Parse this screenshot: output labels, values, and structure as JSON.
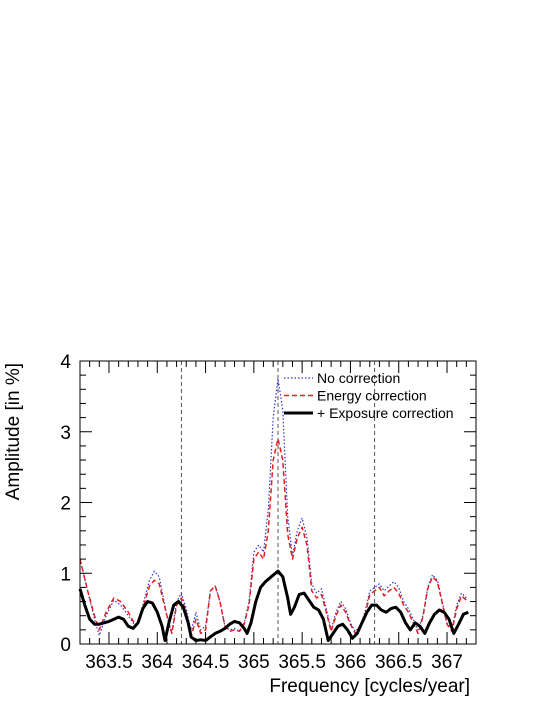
{
  "chart_data": {
    "type": "line",
    "xlabel": "Frequency [cycles/year]",
    "ylabel": "Amplitude [in %]",
    "xlim": [
      363.2,
      367.3
    ],
    "ylim": [
      0,
      4
    ],
    "x_ticks": [
      363.5,
      364,
      364.5,
      365,
      365.5,
      366,
      366.5,
      367
    ],
    "x_tick_labels": [
      "363.5",
      "364",
      "364.5",
      "365",
      "365.5",
      "366",
      "366.5",
      "367"
    ],
    "y_ticks": [
      0,
      1,
      2,
      3,
      4
    ],
    "y_tick_labels": [
      "0",
      "1",
      "2",
      "3",
      "4"
    ],
    "vertical_lines": [
      364.25,
      365.25,
      366.25
    ],
    "legend_position": "top-right",
    "grid": false,
    "series": [
      {
        "name": "No correction",
        "color": "#3333cc",
        "style": "dotted",
        "points": [
          [
            363.2,
            1.2
          ],
          [
            363.28,
            0.75
          ],
          [
            363.35,
            0.35
          ],
          [
            363.4,
            0.12
          ],
          [
            363.47,
            0.4
          ],
          [
            363.55,
            0.62
          ],
          [
            363.62,
            0.55
          ],
          [
            363.7,
            0.4
          ],
          [
            363.78,
            0.24
          ],
          [
            363.85,
            0.55
          ],
          [
            363.92,
            0.9
          ],
          [
            363.97,
            1.03
          ],
          [
            364.02,
            0.95
          ],
          [
            364.1,
            0.4
          ],
          [
            364.15,
            0.15
          ],
          [
            364.2,
            0.6
          ],
          [
            364.25,
            0.72
          ],
          [
            364.3,
            0.5
          ],
          [
            364.35,
            0.18
          ],
          [
            364.4,
            0.45
          ],
          [
            364.45,
            0.2
          ],
          [
            364.5,
            0.25
          ],
          [
            364.55,
            0.75
          ],
          [
            364.6,
            0.82
          ],
          [
            364.65,
            0.6
          ],
          [
            364.7,
            0.25
          ],
          [
            364.75,
            0.2
          ],
          [
            364.8,
            0.22
          ],
          [
            364.85,
            0.18
          ],
          [
            364.9,
            0.3
          ],
          [
            364.95,
            0.6
          ],
          [
            365.0,
            1.3
          ],
          [
            365.05,
            1.4
          ],
          [
            365.1,
            1.3
          ],
          [
            365.15,
            1.9
          ],
          [
            365.2,
            3.2
          ],
          [
            365.25,
            3.75
          ],
          [
            365.3,
            3.3
          ],
          [
            365.35,
            1.8
          ],
          [
            365.4,
            1.25
          ],
          [
            365.45,
            1.6
          ],
          [
            365.5,
            1.78
          ],
          [
            365.55,
            1.5
          ],
          [
            365.6,
            0.85
          ],
          [
            365.65,
            0.72
          ],
          [
            365.7,
            0.78
          ],
          [
            365.75,
            0.5
          ],
          [
            365.8,
            0.2
          ],
          [
            365.85,
            0.45
          ],
          [
            365.9,
            0.6
          ],
          [
            365.95,
            0.5
          ],
          [
            366.0,
            0.3
          ],
          [
            366.05,
            0.18
          ],
          [
            366.1,
            0.25
          ],
          [
            366.15,
            0.45
          ],
          [
            366.2,
            0.75
          ],
          [
            366.25,
            0.8
          ],
          [
            366.3,
            0.85
          ],
          [
            366.35,
            0.75
          ],
          [
            366.4,
            0.82
          ],
          [
            366.45,
            0.88
          ],
          [
            366.5,
            0.8
          ],
          [
            366.55,
            0.6
          ],
          [
            366.6,
            0.5
          ],
          [
            366.65,
            0.35
          ],
          [
            366.7,
            0.2
          ],
          [
            366.75,
            0.4
          ],
          [
            366.8,
            0.8
          ],
          [
            366.85,
            0.98
          ],
          [
            366.9,
            0.9
          ],
          [
            366.95,
            0.6
          ],
          [
            367.0,
            0.3
          ],
          [
            367.05,
            0.2
          ],
          [
            367.1,
            0.55
          ],
          [
            367.15,
            0.72
          ],
          [
            367.2,
            0.65
          ]
        ]
      },
      {
        "name": "Energy correction",
        "color": "#e02020",
        "style": "dashed",
        "points": [
          [
            363.2,
            1.2
          ],
          [
            363.28,
            0.75
          ],
          [
            363.35,
            0.4
          ],
          [
            363.4,
            0.2
          ],
          [
            363.47,
            0.45
          ],
          [
            363.55,
            0.65
          ],
          [
            363.62,
            0.6
          ],
          [
            363.7,
            0.45
          ],
          [
            363.78,
            0.25
          ],
          [
            363.85,
            0.5
          ],
          [
            363.92,
            0.82
          ],
          [
            363.97,
            0.9
          ],
          [
            364.02,
            0.85
          ],
          [
            364.1,
            0.4
          ],
          [
            364.15,
            0.15
          ],
          [
            364.2,
            0.55
          ],
          [
            364.25,
            0.65
          ],
          [
            364.3,
            0.45
          ],
          [
            364.35,
            0.1
          ],
          [
            364.4,
            0.35
          ],
          [
            364.45,
            0.15
          ],
          [
            364.5,
            0.2
          ],
          [
            364.55,
            0.75
          ],
          [
            364.6,
            0.82
          ],
          [
            364.65,
            0.6
          ],
          [
            364.7,
            0.25
          ],
          [
            364.75,
            0.18
          ],
          [
            364.8,
            0.2
          ],
          [
            364.85,
            0.18
          ],
          [
            364.9,
            0.28
          ],
          [
            364.95,
            0.55
          ],
          [
            365.0,
            1.2
          ],
          [
            365.05,
            1.3
          ],
          [
            365.1,
            1.2
          ],
          [
            365.15,
            1.6
          ],
          [
            365.2,
            2.6
          ],
          [
            365.25,
            2.9
          ],
          [
            365.3,
            2.6
          ],
          [
            365.35,
            1.55
          ],
          [
            365.4,
            1.2
          ],
          [
            365.45,
            1.5
          ],
          [
            365.5,
            1.65
          ],
          [
            365.55,
            1.4
          ],
          [
            365.6,
            0.75
          ],
          [
            365.65,
            0.65
          ],
          [
            365.7,
            0.7
          ],
          [
            365.75,
            0.45
          ],
          [
            365.8,
            0.18
          ],
          [
            365.85,
            0.4
          ],
          [
            365.9,
            0.55
          ],
          [
            365.95,
            0.45
          ],
          [
            366.0,
            0.28
          ],
          [
            366.05,
            0.15
          ],
          [
            366.1,
            0.22
          ],
          [
            366.15,
            0.4
          ],
          [
            366.2,
            0.7
          ],
          [
            366.25,
            0.75
          ],
          [
            366.3,
            0.8
          ],
          [
            366.35,
            0.68
          ],
          [
            366.4,
            0.75
          ],
          [
            366.45,
            0.8
          ],
          [
            366.5,
            0.72
          ],
          [
            366.55,
            0.55
          ],
          [
            366.6,
            0.45
          ],
          [
            366.65,
            0.3
          ],
          [
            366.7,
            0.15
          ],
          [
            366.75,
            0.38
          ],
          [
            366.8,
            0.78
          ],
          [
            366.85,
            0.95
          ],
          [
            366.9,
            0.88
          ],
          [
            366.95,
            0.58
          ],
          [
            367.0,
            0.28
          ],
          [
            367.05,
            0.18
          ],
          [
            367.1,
            0.5
          ],
          [
            367.15,
            0.68
          ],
          [
            367.2,
            0.62
          ]
        ]
      },
      {
        "name": "+ Exposure correction",
        "color": "#000000",
        "style": "solid",
        "points": [
          [
            363.2,
            0.78
          ],
          [
            363.25,
            0.55
          ],
          [
            363.3,
            0.35
          ],
          [
            363.35,
            0.28
          ],
          [
            363.4,
            0.28
          ],
          [
            363.45,
            0.3
          ],
          [
            363.5,
            0.32
          ],
          [
            363.55,
            0.35
          ],
          [
            363.6,
            0.38
          ],
          [
            363.65,
            0.35
          ],
          [
            363.7,
            0.25
          ],
          [
            363.75,
            0.22
          ],
          [
            363.8,
            0.3
          ],
          [
            363.85,
            0.5
          ],
          [
            363.9,
            0.6
          ],
          [
            363.95,
            0.58
          ],
          [
            364.0,
            0.45
          ],
          [
            364.05,
            0.25
          ],
          [
            364.08,
            0.05
          ],
          [
            364.12,
            0.3
          ],
          [
            364.17,
            0.55
          ],
          [
            364.22,
            0.6
          ],
          [
            364.27,
            0.52
          ],
          [
            364.32,
            0.3
          ],
          [
            364.35,
            0.1
          ],
          [
            364.4,
            0.05
          ],
          [
            364.45,
            0.06
          ],
          [
            364.5,
            0.05
          ],
          [
            364.55,
            0.1
          ],
          [
            364.6,
            0.15
          ],
          [
            364.65,
            0.18
          ],
          [
            364.7,
            0.22
          ],
          [
            364.75,
            0.28
          ],
          [
            364.8,
            0.32
          ],
          [
            364.85,
            0.3
          ],
          [
            364.9,
            0.22
          ],
          [
            364.93,
            0.15
          ],
          [
            364.97,
            0.3
          ],
          [
            365.02,
            0.6
          ],
          [
            365.07,
            0.8
          ],
          [
            365.12,
            0.88
          ],
          [
            365.18,
            0.95
          ],
          [
            365.25,
            1.03
          ],
          [
            365.3,
            0.95
          ],
          [
            365.35,
            0.65
          ],
          [
            365.38,
            0.42
          ],
          [
            365.42,
            0.52
          ],
          [
            365.47,
            0.7
          ],
          [
            365.52,
            0.72
          ],
          [
            365.57,
            0.62
          ],
          [
            365.62,
            0.52
          ],
          [
            365.67,
            0.48
          ],
          [
            365.72,
            0.35
          ],
          [
            365.77,
            0.05
          ],
          [
            365.82,
            0.15
          ],
          [
            365.87,
            0.25
          ],
          [
            365.92,
            0.28
          ],
          [
            365.97,
            0.2
          ],
          [
            366.02,
            0.08
          ],
          [
            366.07,
            0.15
          ],
          [
            366.12,
            0.3
          ],
          [
            366.17,
            0.45
          ],
          [
            366.22,
            0.55
          ],
          [
            366.27,
            0.55
          ],
          [
            366.32,
            0.48
          ],
          [
            366.37,
            0.45
          ],
          [
            366.42,
            0.5
          ],
          [
            366.47,
            0.52
          ],
          [
            366.52,
            0.45
          ],
          [
            366.57,
            0.3
          ],
          [
            366.62,
            0.2
          ],
          [
            366.67,
            0.3
          ],
          [
            366.72,
            0.25
          ],
          [
            366.77,
            0.15
          ],
          [
            366.82,
            0.3
          ],
          [
            366.87,
            0.42
          ],
          [
            366.92,
            0.48
          ],
          [
            366.97,
            0.45
          ],
          [
            367.02,
            0.35
          ],
          [
            367.07,
            0.15
          ],
          [
            367.12,
            0.28
          ],
          [
            367.17,
            0.42
          ],
          [
            367.22,
            0.45
          ]
        ]
      }
    ]
  }
}
